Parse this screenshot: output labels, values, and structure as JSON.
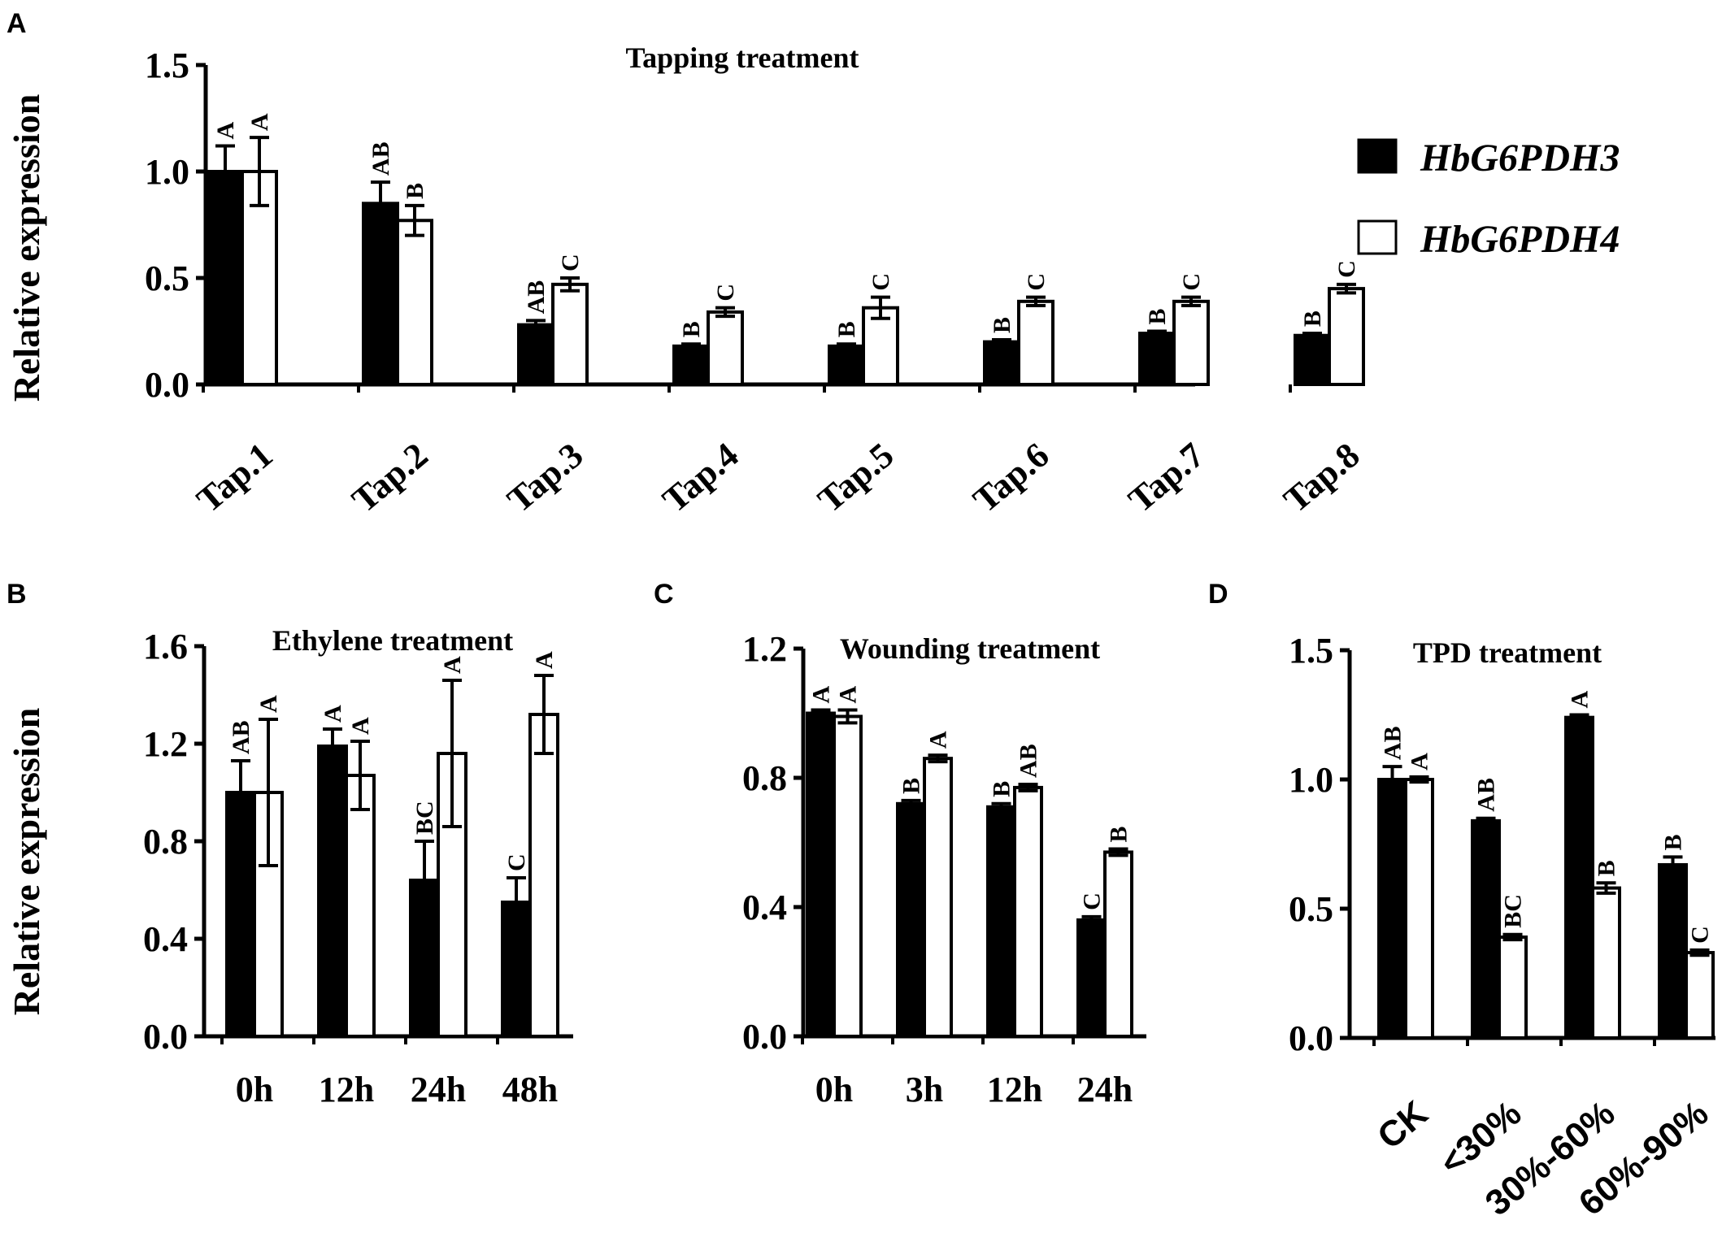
{
  "legend": {
    "entries": [
      {
        "label": "HbG6PDH3",
        "color": "#000000"
      },
      {
        "label": "HbG6PDH4",
        "color": "#ffffff"
      }
    ]
  },
  "ylabel": "Relative expression",
  "chart_data": [
    {
      "panel": "A",
      "type": "bar",
      "title": "Tapping treatment",
      "xlabel": "",
      "ylabel": "Relative expression",
      "ylim": [
        0,
        1.5
      ],
      "yticks": [
        "0.0",
        "0.5",
        "1.0",
        "1.5"
      ],
      "categories": [
        "Tap.1",
        "Tap.2",
        "Tap.3",
        "Tap.4",
        "Tap.5",
        "Tap.6",
        "Tap.7",
        "Tap.8"
      ],
      "series": [
        {
          "name": "HbG6PDH3",
          "values": [
            1.0,
            0.85,
            0.28,
            0.18,
            0.18,
            0.2,
            0.24,
            0.23
          ],
          "errors": [
            0.12,
            0.1,
            0.02,
            0.01,
            0.01,
            0.01,
            0.01,
            0.01
          ],
          "letters": [
            "A",
            "AB",
            "AB",
            "B",
            "B",
            "B",
            "B",
            "B"
          ]
        },
        {
          "name": "HbG6PDH4",
          "values": [
            1.0,
            0.77,
            0.47,
            0.34,
            0.36,
            0.39,
            0.39,
            0.45
          ],
          "errors": [
            0.16,
            0.07,
            0.03,
            0.02,
            0.05,
            0.02,
            0.02,
            0.02
          ],
          "letters": [
            "A",
            "B",
            "C",
            "C",
            "C",
            "C",
            "C",
            "C"
          ]
        }
      ]
    },
    {
      "panel": "B",
      "type": "bar",
      "title": "Ethylene treatment",
      "xlabel": "",
      "ylabel": "Relative expression",
      "ylim": [
        0,
        1.6
      ],
      "yticks": [
        "0.0",
        "0.4",
        "0.8",
        "1.2",
        "1.6"
      ],
      "categories": [
        "0h",
        "12h",
        "24h",
        "48h"
      ],
      "series": [
        {
          "name": "HbG6PDH3",
          "values": [
            1.0,
            1.19,
            0.64,
            0.55
          ],
          "errors": [
            0.13,
            0.07,
            0.16,
            0.1
          ],
          "letters": [
            "AB",
            "A",
            "BC",
            "C"
          ]
        },
        {
          "name": "HbG6PDH4",
          "values": [
            1.0,
            1.07,
            1.16,
            1.32
          ],
          "errors": [
            0.3,
            0.14,
            0.3,
            0.16
          ],
          "letters": [
            "A",
            "A",
            "A",
            "A"
          ]
        }
      ]
    },
    {
      "panel": "C",
      "type": "bar",
      "title": "Wounding treatment",
      "xlabel": "",
      "ylabel": "",
      "ylim": [
        0,
        1.2
      ],
      "yticks": [
        "0.0",
        "0.4",
        "0.8",
        "1.2"
      ],
      "categories": [
        "0h",
        "3h",
        "12h",
        "24h"
      ],
      "series": [
        {
          "name": "HbG6PDH3",
          "values": [
            1.0,
            0.72,
            0.71,
            0.36
          ],
          "errors": [
            0.01,
            0.01,
            0.01,
            0.01
          ],
          "letters": [
            "A",
            "B",
            "B",
            "C"
          ]
        },
        {
          "name": "HbG6PDH4",
          "values": [
            0.99,
            0.86,
            0.77,
            0.57
          ],
          "errors": [
            0.02,
            0.01,
            0.01,
            0.01
          ],
          "letters": [
            "A",
            "A",
            "AB",
            "B"
          ]
        }
      ]
    },
    {
      "panel": "D",
      "type": "bar",
      "title": "TPD treatment",
      "xlabel": "",
      "ylabel": "",
      "ylim": [
        0,
        1.5
      ],
      "yticks": [
        "0.0",
        "0.5",
        "1.0",
        "1.5"
      ],
      "categories": [
        "CK",
        "<30%",
        "30%-60%",
        "60%-90%"
      ],
      "series": [
        {
          "name": "HbG6PDH3",
          "values": [
            1.0,
            0.84,
            1.24,
            0.67
          ],
          "errors": [
            0.05,
            0.01,
            0.01,
            0.03
          ],
          "letters": [
            "AB",
            "AB",
            "A",
            "B"
          ]
        },
        {
          "name": "HbG6PDH4",
          "values": [
            1.0,
            0.39,
            0.58,
            0.33
          ],
          "errors": [
            0.01,
            0.01,
            0.02,
            0.01
          ],
          "letters": [
            "A",
            "BC",
            "B",
            "C"
          ]
        }
      ]
    }
  ]
}
